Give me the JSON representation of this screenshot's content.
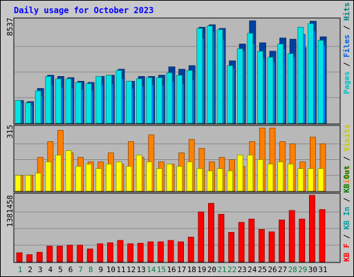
{
  "chart_data": [
    {
      "type": "bar",
      "title": "Daily usage for October 2023",
      "categories": [
        "1",
        "2",
        "3",
        "4",
        "5",
        "6",
        "7",
        "8",
        "9",
        "10",
        "11",
        "12",
        "13",
        "14",
        "15",
        "16",
        "17",
        "18",
        "19",
        "20",
        "21",
        "22",
        "23",
        "24",
        "25",
        "26",
        "27",
        "28",
        "29",
        "30",
        "31"
      ],
      "weekend_days": [
        "1",
        "7",
        "8",
        "14",
        "15",
        "21",
        "22",
        "28",
        "29"
      ],
      "ymax_label": "8537",
      "legend": [
        "Pages",
        "Files",
        "Hits"
      ],
      "series": [
        {
          "name": "Hits",
          "color": "#00e4e4",
          "values": [
            1900,
            1700,
            2700,
            3900,
            3700,
            3700,
            3400,
            3300,
            3900,
            4000,
            4400,
            3500,
            3700,
            3800,
            3800,
            4200,
            4000,
            4400,
            7900,
            8100,
            7800,
            4800,
            6200,
            7500,
            6000,
            5500,
            6600,
            5800,
            8000,
            8300,
            6900
          ]
        },
        {
          "name": "Files",
          "color": "#0080ff",
          "values": [
            1700,
            1500,
            2300,
            3200,
            3000,
            2900,
            2800,
            2700,
            3200,
            3300,
            3700,
            2900,
            3100,
            3200,
            3200,
            3500,
            3300,
            3600,
            7100,
            7600,
            7000,
            4600,
            6000,
            6600,
            5400,
            5100,
            6200,
            5500,
            7400,
            7700,
            6500
          ]
        },
        {
          "name": "Pages",
          "color": "#0040a0",
          "values": [
            1900,
            1800,
            2900,
            4000,
            3900,
            3800,
            3500,
            3400,
            3900,
            4000,
            4500,
            3500,
            3900,
            3900,
            4000,
            4700,
            4500,
            4800,
            8000,
            8200,
            7900,
            5200,
            6600,
            8537,
            6700,
            6000,
            7100,
            7000,
            6300,
            8500,
            7200
          ]
        }
      ]
    },
    {
      "type": "bar",
      "ymax_label": "315",
      "legend": [
        "Visits",
        "Sites"
      ],
      "series": [
        {
          "name": "Visits",
          "color": "#ffff00",
          "values": [
            70,
            70,
            80,
            130,
            160,
            180,
            110,
            120,
            100,
            120,
            130,
            110,
            160,
            130,
            100,
            120,
            110,
            130,
            100,
            90,
            100,
            90,
            160,
            160,
            140,
            120,
            130,
            120,
            100,
            100,
            100
          ]
        },
        {
          "name": "Sites",
          "color": "#ff8000",
          "values": [
            70,
            70,
            150,
            220,
            270,
            170,
            150,
            130,
            130,
            170,
            120,
            220,
            150,
            250,
            130,
            120,
            170,
            230,
            190,
            130,
            150,
            140,
            110,
            220,
            280,
            280,
            220,
            210,
            130,
            240,
            210
          ]
        }
      ]
    },
    {
      "type": "bar",
      "ymax_label": "1381458",
      "legend": [
        "KB F",
        "KB In",
        "KB Out"
      ],
      "series": [
        {
          "name": "KB F",
          "color": "#ff0000",
          "values": [
            190000,
            150000,
            200000,
            330000,
            330000,
            350000,
            350000,
            270000,
            380000,
            400000,
            450000,
            380000,
            390000,
            420000,
            420000,
            450000,
            420000,
            520000,
            1050000,
            1230000,
            1000000,
            620000,
            830000,
            900000,
            680000,
            630000,
            880000,
            1080000,
            900000,
            1400000,
            1100000
          ]
        },
        {
          "name": "KB In",
          "color": "#00c0c0",
          "values": []
        },
        {
          "name": "KB Out",
          "color": "#00b000",
          "values": []
        }
      ]
    }
  ]
}
